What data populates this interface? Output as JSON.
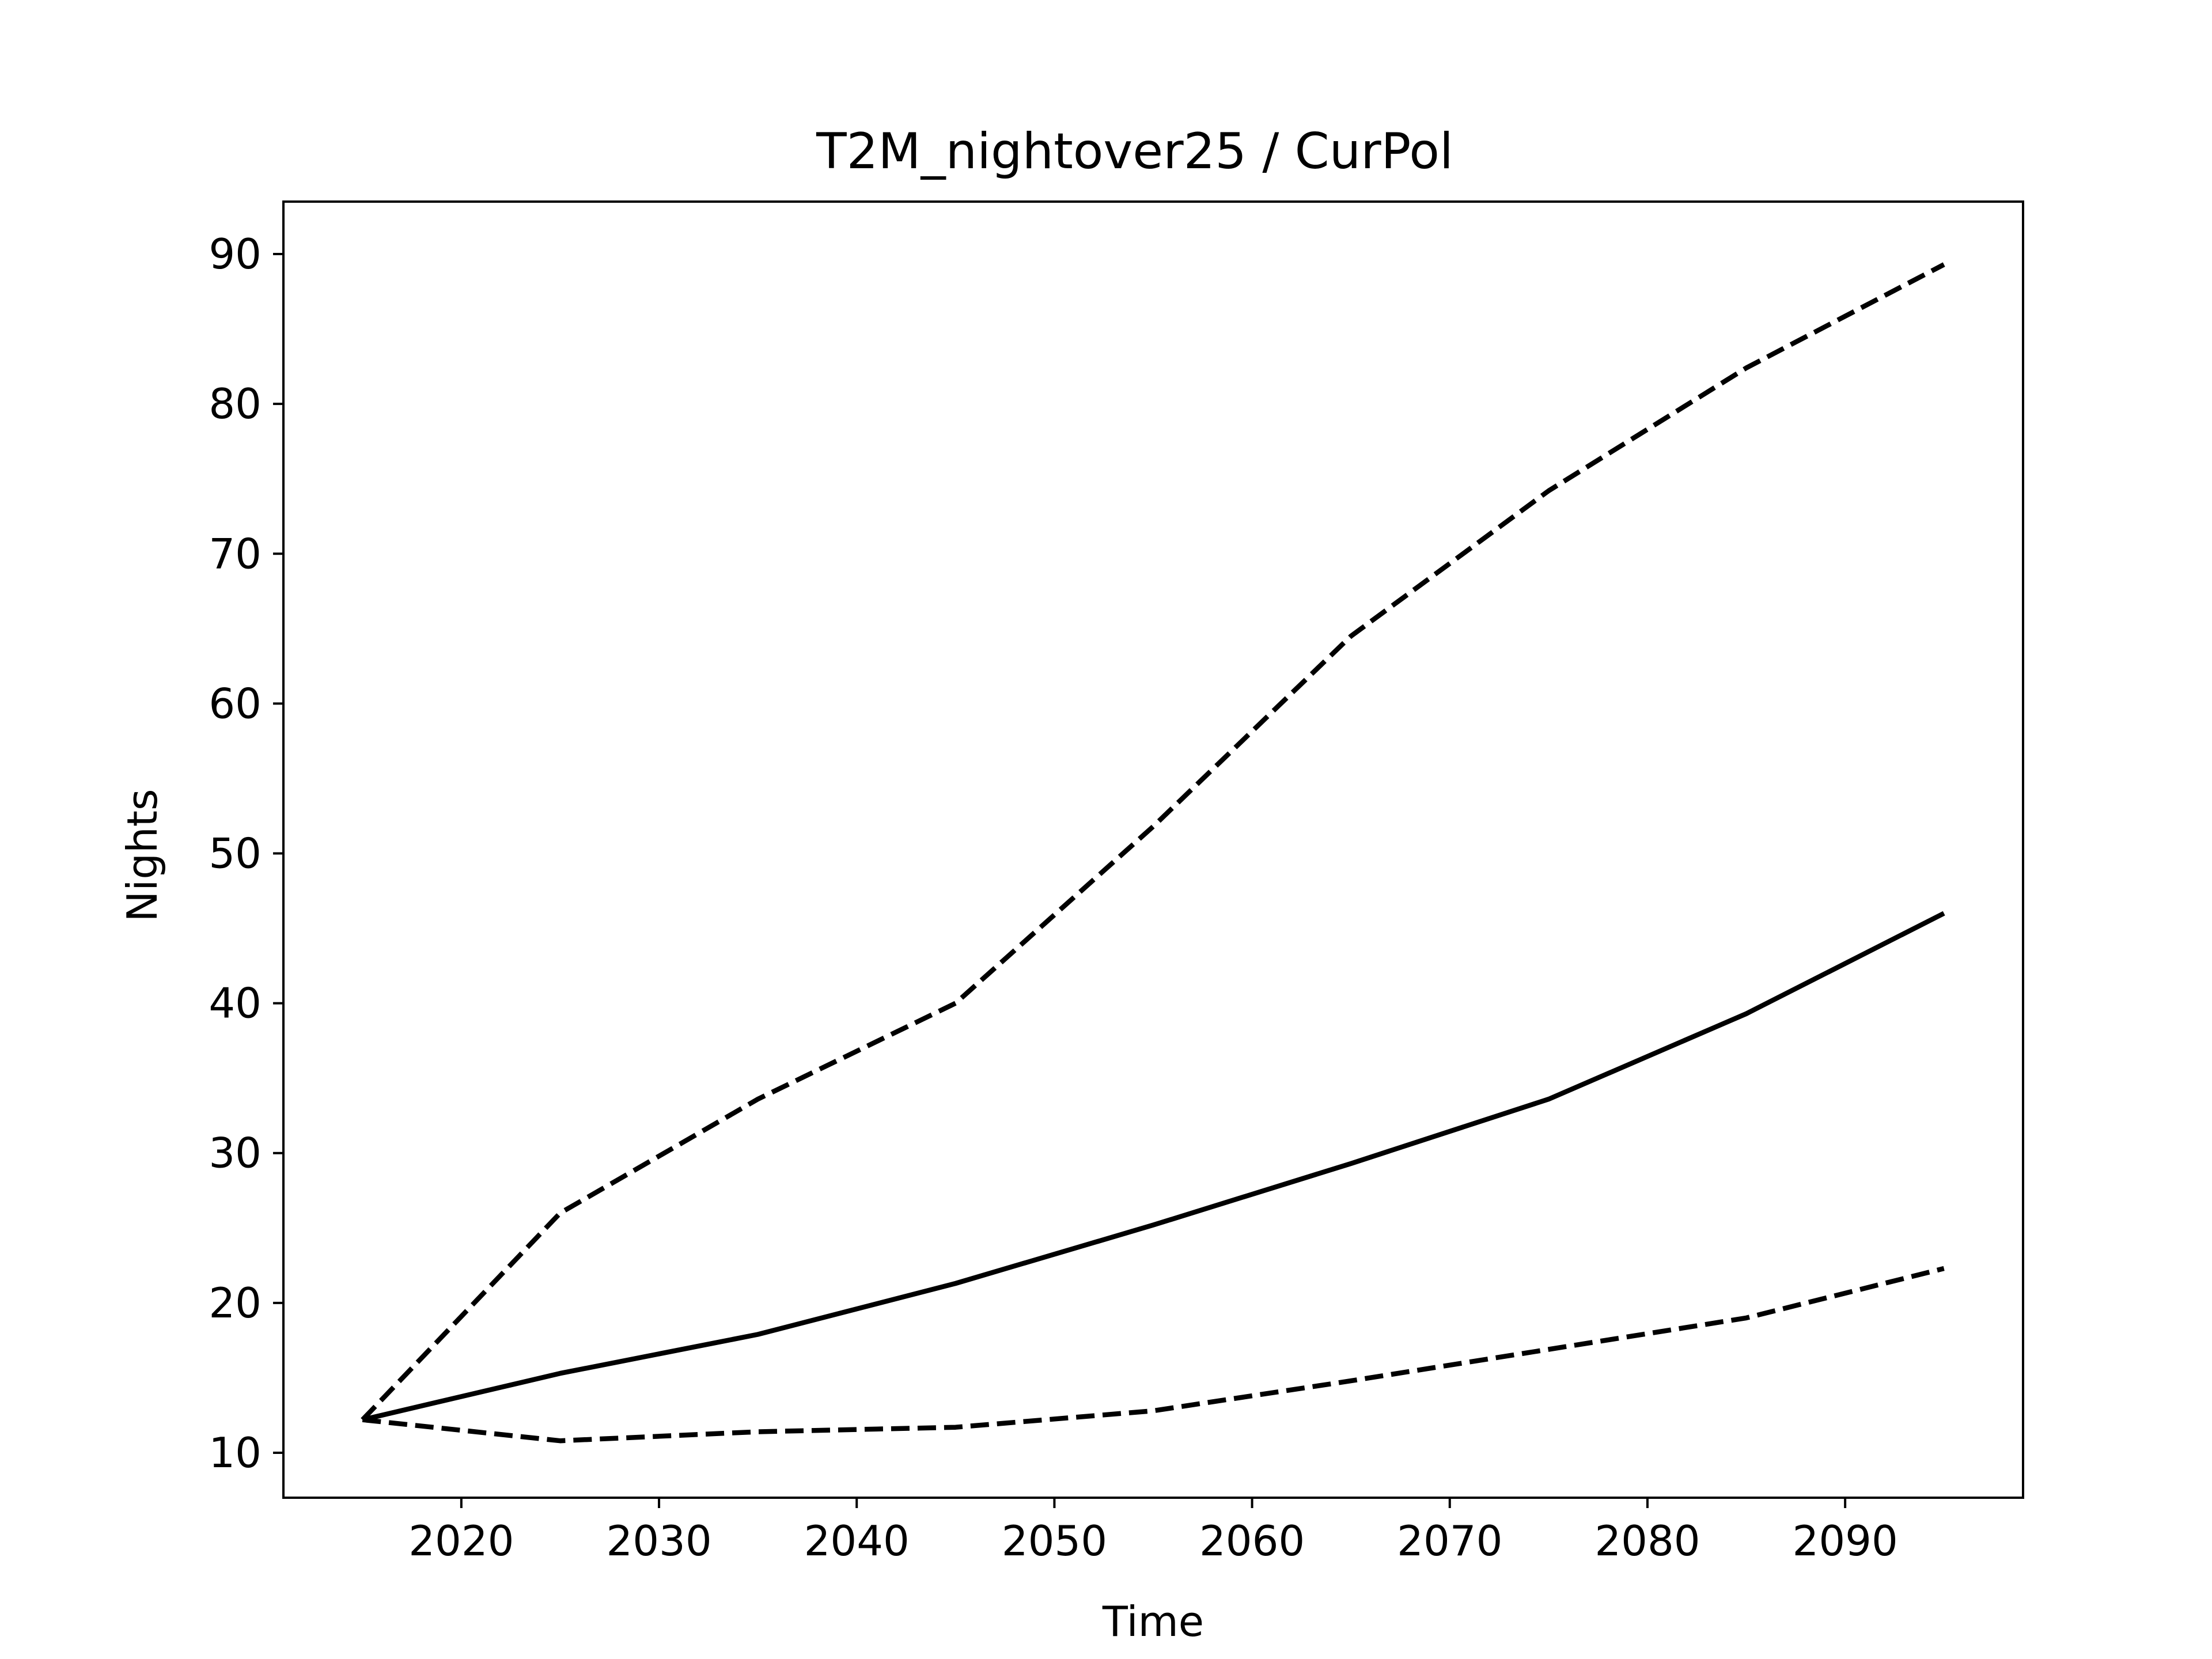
{
  "chart_data": {
    "type": "line",
    "title": "T2M_nightover25 / CurPol",
    "xlabel": "Time",
    "ylabel": "Nights",
    "xlim": [
      2011,
      2099
    ],
    "ylim": [
      7,
      93.5
    ],
    "xticks": [
      2020,
      2030,
      2040,
      2050,
      2060,
      2070,
      2080,
      2090
    ],
    "yticks": [
      10,
      20,
      30,
      40,
      50,
      60,
      70,
      80,
      90
    ],
    "grid": false,
    "legend": "none",
    "x": [
      2015,
      2025,
      2035,
      2045,
      2055,
      2065,
      2075,
      2085,
      2095
    ],
    "series": [
      {
        "style": "solid",
        "color": "#000000",
        "values": [
          12.2,
          15.3,
          17.9,
          21.3,
          25.2,
          29.3,
          33.6,
          39.3,
          46.0
        ]
      },
      {
        "style": "dashed",
        "color": "#000000",
        "values": [
          12.2,
          26.0,
          33.6,
          40.0,
          51.8,
          64.5,
          74.2,
          82.4,
          89.3
        ]
      },
      {
        "style": "dashed",
        "color": "#000000",
        "values": [
          12.2,
          10.8,
          11.4,
          11.7,
          12.8,
          14.8,
          16.9,
          19.0,
          22.3
        ]
      }
    ]
  }
}
